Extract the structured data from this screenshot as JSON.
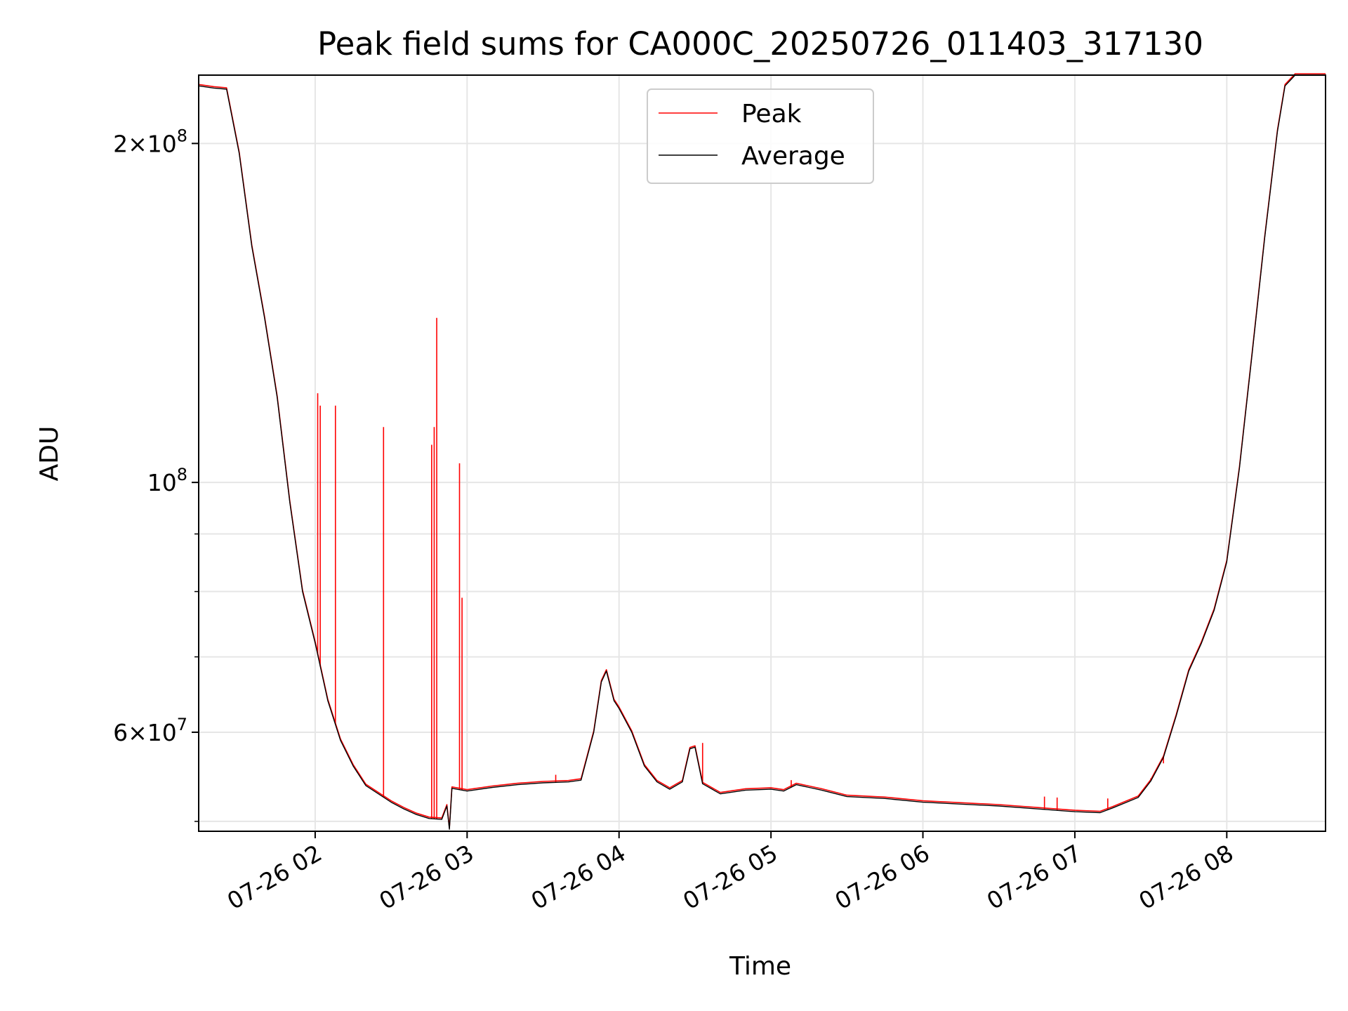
{
  "chart_data": {
    "type": "line",
    "title": "Peak field sums for CA000C_20250726_011403_317130",
    "xlabel": "Time",
    "ylabel": "ADU",
    "y_scale": "log",
    "ylim": [
      49000000,
      230000000
    ],
    "xlim": [
      "2025-07-26 01:14",
      "2025-07-26 08:39"
    ],
    "grid": true,
    "legend_position": "upper center",
    "x_ticks": [
      {
        "value": "2025-07-26 02:00",
        "label": "07-26 02"
      },
      {
        "value": "2025-07-26 03:00",
        "label": "07-26 03"
      },
      {
        "value": "2025-07-26 04:00",
        "label": "07-26 04"
      },
      {
        "value": "2025-07-26 05:00",
        "label": "07-26 05"
      },
      {
        "value": "2025-07-26 06:00",
        "label": "07-26 06"
      },
      {
        "value": "2025-07-26 07:00",
        "label": "07-26 07"
      },
      {
        "value": "2025-07-26 08:00",
        "label": "07-26 08"
      }
    ],
    "y_major_ticks": [
      {
        "value": 200000000,
        "base": "2×10",
        "exp": "8"
      },
      {
        "value": 100000000,
        "base": "10",
        "exp": "8"
      },
      {
        "value": 60000000,
        "base": "6×10",
        "exp": "7"
      }
    ],
    "y_minor_ticks": [
      50000000,
      70000000,
      80000000,
      90000000
    ],
    "series": [
      {
        "name": "Average",
        "color": "#000000",
        "points": [
          [
            "2025-07-26 01:14",
            225000000
          ],
          [
            "2025-07-26 01:20",
            224000000
          ],
          [
            "2025-07-26 01:25",
            223500000
          ],
          [
            "2025-07-26 01:30",
            196000000
          ],
          [
            "2025-07-26 01:35",
            162000000
          ],
          [
            "2025-07-26 01:40",
            140000000
          ],
          [
            "2025-07-26 01:45",
            119000000
          ],
          [
            "2025-07-26 01:50",
            96000000
          ],
          [
            "2025-07-26 01:55",
            80000000
          ],
          [
            "2025-07-26 02:00",
            72000000
          ],
          [
            "2025-07-26 02:05",
            64000000
          ],
          [
            "2025-07-26 02:10",
            59000000
          ],
          [
            "2025-07-26 02:15",
            56000000
          ],
          [
            "2025-07-26 02:20",
            53800000
          ],
          [
            "2025-07-26 02:30",
            52000000
          ],
          [
            "2025-07-26 02:35",
            51300000
          ],
          [
            "2025-07-26 02:40",
            50700000
          ],
          [
            "2025-07-26 02:45",
            50300000
          ],
          [
            "2025-07-26 02:50",
            50200000
          ],
          [
            "2025-07-26 02:52",
            51600000
          ],
          [
            "2025-07-26 02:53",
            49200000
          ],
          [
            "2025-07-26 02:54",
            53500000
          ],
          [
            "2025-07-26 03:00",
            53200000
          ],
          [
            "2025-07-26 03:10",
            53600000
          ],
          [
            "2025-07-26 03:20",
            53900000
          ],
          [
            "2025-07-26 03:30",
            54100000
          ],
          [
            "2025-07-26 03:40",
            54200000
          ],
          [
            "2025-07-26 03:45",
            54400000
          ],
          [
            "2025-07-26 03:50",
            60000000
          ],
          [
            "2025-07-26 03:53",
            66500000
          ],
          [
            "2025-07-26 03:55",
            68000000
          ],
          [
            "2025-07-26 03:58",
            64000000
          ],
          [
            "2025-07-26 04:00",
            63000000
          ],
          [
            "2025-07-26 04:05",
            60000000
          ],
          [
            "2025-07-26 04:10",
            56000000
          ],
          [
            "2025-07-26 04:15",
            54200000
          ],
          [
            "2025-07-26 04:20",
            53400000
          ],
          [
            "2025-07-26 04:25",
            54200000
          ],
          [
            "2025-07-26 04:28",
            58000000
          ],
          [
            "2025-07-26 04:30",
            58200000
          ],
          [
            "2025-07-26 04:33",
            54000000
          ],
          [
            "2025-07-26 04:40",
            52900000
          ],
          [
            "2025-07-26 04:50",
            53300000
          ],
          [
            "2025-07-26 05:00",
            53400000
          ],
          [
            "2025-07-26 05:05",
            53200000
          ],
          [
            "2025-07-26 05:10",
            53900000
          ],
          [
            "2025-07-26 05:15",
            53600000
          ],
          [
            "2025-07-26 05:20",
            53300000
          ],
          [
            "2025-07-26 05:30",
            52600000
          ],
          [
            "2025-07-26 05:45",
            52400000
          ],
          [
            "2025-07-26 06:00",
            52000000
          ],
          [
            "2025-07-26 06:15",
            51800000
          ],
          [
            "2025-07-26 06:30",
            51600000
          ],
          [
            "2025-07-26 06:45",
            51300000
          ],
          [
            "2025-07-26 07:00",
            51000000
          ],
          [
            "2025-07-26 07:10",
            50900000
          ],
          [
            "2025-07-26 07:15",
            51400000
          ],
          [
            "2025-07-26 07:25",
            52500000
          ],
          [
            "2025-07-26 07:30",
            54300000
          ],
          [
            "2025-07-26 07:35",
            57000000
          ],
          [
            "2025-07-26 07:40",
            62000000
          ],
          [
            "2025-07-26 07:45",
            68000000
          ],
          [
            "2025-07-26 07:50",
            72000000
          ],
          [
            "2025-07-26 07:55",
            77000000
          ],
          [
            "2025-07-26 08:00",
            85000000
          ],
          [
            "2025-07-26 08:05",
            103000000
          ],
          [
            "2025-07-26 08:10",
            130000000
          ],
          [
            "2025-07-26 08:15",
            165000000
          ],
          [
            "2025-07-26 08:20",
            205000000
          ],
          [
            "2025-07-26 08:23",
            225000000
          ],
          [
            "2025-07-26 08:27",
            230000000
          ],
          [
            "2025-07-26 08:39",
            230000000
          ]
        ]
      },
      {
        "name": "Peak",
        "color": "#ff0000",
        "spikes": [
          [
            "2025-07-26 02:01",
            120000000
          ],
          [
            "2025-07-26 02:02",
            117000000
          ],
          [
            "2025-07-26 02:08",
            117000000
          ],
          [
            "2025-07-26 02:27",
            112000000
          ],
          [
            "2025-07-26 02:46",
            108000000
          ],
          [
            "2025-07-26 02:47",
            112000000
          ],
          [
            "2025-07-26 02:48",
            140000000
          ],
          [
            "2025-07-26 02:57",
            104000000
          ],
          [
            "2025-07-26 02:58",
            79000000
          ],
          [
            "2025-07-26 03:35",
            55000000
          ],
          [
            "2025-07-26 04:33",
            58700000
          ],
          [
            "2025-07-26 05:08",
            54400000
          ],
          [
            "2025-07-26 06:48",
            52600000
          ],
          [
            "2025-07-26 06:53",
            52500000
          ],
          [
            "2025-07-26 07:13",
            52400000
          ],
          [
            "2025-07-26 07:30",
            54600000
          ],
          [
            "2025-07-26 07:35",
            56300000
          ]
        ]
      }
    ]
  }
}
